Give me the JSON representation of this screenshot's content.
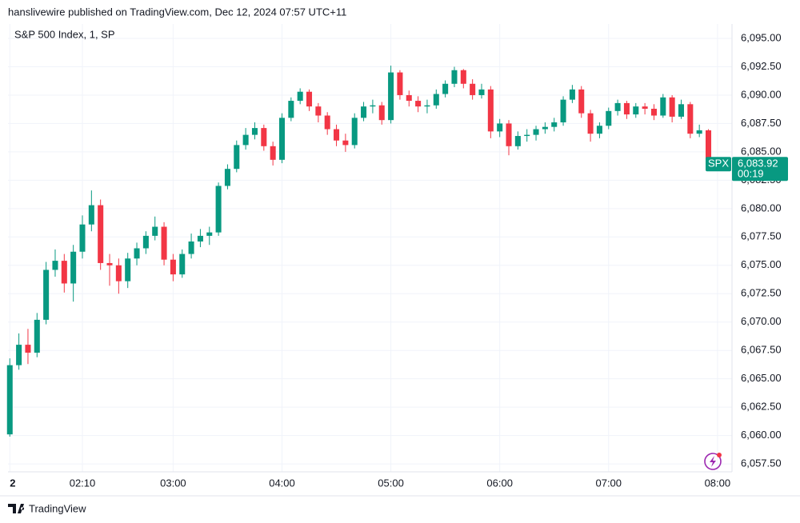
{
  "header": "hanslivewire published on TradingView.com, Dec 12, 2024 07:57 UTC+11",
  "footer": "TradingView",
  "chart_data": {
    "type": "candlestick",
    "title": "S&P 500 Index, 1, SP",
    "up_color": "#089981",
    "down_color": "#f23645",
    "grid": true,
    "x": [
      "01:30",
      "01:35",
      "01:40",
      "01:45",
      "01:50",
      "01:55",
      "02:00",
      "02:05",
      "02:10",
      "02:15",
      "02:20",
      "02:25",
      "02:30",
      "02:35",
      "02:40",
      "02:45",
      "02:50",
      "02:55",
      "03:00",
      "03:05",
      "03:10",
      "03:15",
      "03:20",
      "03:25",
      "03:30",
      "03:35",
      "03:40",
      "03:45",
      "03:50",
      "03:55",
      "04:00",
      "04:05",
      "04:10",
      "04:15",
      "04:20",
      "04:25",
      "04:30",
      "04:35",
      "04:40",
      "04:45",
      "04:50",
      "04:55",
      "05:00",
      "05:05",
      "05:10",
      "05:15",
      "05:20",
      "05:25",
      "05:30",
      "05:35",
      "05:40",
      "05:45",
      "05:50",
      "05:55",
      "06:00",
      "06:05",
      "06:10",
      "06:15",
      "06:20",
      "06:25",
      "06:30",
      "06:35",
      "06:40",
      "06:45",
      "06:50",
      "06:55",
      "07:00",
      "07:05",
      "07:10",
      "07:15",
      "07:20",
      "07:25",
      "07:30",
      "07:35",
      "07:40",
      "07:45",
      "07:50",
      "07:55"
    ],
    "open": [
      6060.1,
      6066.2,
      6068.0,
      6067.3,
      6070.2,
      6074.6,
      6075.4,
      6073.4,
      6076.2,
      6078.6,
      6080.3,
      6075.2,
      6075.0,
      6073.6,
      6075.6,
      6076.5,
      6077.6,
      6078.4,
      6075.5,
      6074.2,
      6076.0,
      6077.1,
      6077.6,
      6077.9,
      6082.0,
      6083.5,
      6085.6,
      6086.5,
      6087.1,
      6085.5,
      6084.3,
      6088.0,
      6089.5,
      6090.3,
      6089.0,
      6088.2,
      6087.0,
      6086.0,
      6085.6,
      6088.0,
      6089.0,
      6089.1,
      6087.8,
      6092.0,
      6090.0,
      6089.5,
      6089.0,
      6089.1,
      6090.1,
      6091.0,
      6092.2,
      6091.0,
      6090.0,
      6090.5,
      6086.8,
      6087.5,
      6085.5,
      6086.4,
      6086.5,
      6087.0,
      6087.2,
      6087.6,
      6089.6,
      6090.5,
      6088.4,
      6086.6,
      6087.3,
      6088.6,
      6089.3,
      6088.3,
      6089.0,
      6088.8,
      6088.2,
      6089.8,
      6088.1,
      6089.2,
      6086.6,
      6086.9
    ],
    "high": [
      6066.8,
      6069.0,
      6069.4,
      6070.8,
      6075.3,
      6076.4,
      6076.0,
      6076.8,
      6079.4,
      6081.6,
      6080.8,
      6076.0,
      6075.6,
      6076.1,
      6077.0,
      6078.0,
      6079.3,
      6078.8,
      6076.0,
      6076.4,
      6077.8,
      6078.2,
      6078.4,
      6082.3,
      6083.9,
      6086.0,
      6087.1,
      6087.6,
      6087.4,
      6085.9,
      6088.4,
      6089.8,
      6090.6,
      6090.5,
      6089.3,
      6088.5,
      6087.4,
      6086.6,
      6088.4,
      6089.4,
      6089.6,
      6089.4,
      6092.6,
      6092.2,
      6090.4,
      6089.9,
      6089.6,
      6090.5,
      6091.3,
      6092.5,
      6092.3,
      6091.4,
      6091.0,
      6090.8,
      6087.9,
      6087.8,
      6086.8,
      6087.0,
      6087.3,
      6087.6,
      6088.0,
      6089.9,
      6090.9,
      6090.8,
      6088.7,
      6087.6,
      6088.9,
      6089.6,
      6089.5,
      6089.3,
      6089.3,
      6089.2,
      6090.1,
      6090.0,
      6089.6,
      6089.4,
      6087.4,
      6087.0
    ],
    "low": [
      6059.9,
      6065.8,
      6066.3,
      6066.9,
      6069.8,
      6074.0,
      6072.6,
      6071.8,
      6075.6,
      6078.0,
      6074.6,
      6073.2,
      6072.5,
      6073.0,
      6075.0,
      6076.0,
      6077.2,
      6075.0,
      6073.6,
      6073.9,
      6075.6,
      6076.6,
      6076.8,
      6077.6,
      6081.7,
      6083.2,
      6085.2,
      6086.1,
      6085.1,
      6083.8,
      6084.0,
      6087.7,
      6089.2,
      6088.6,
      6087.6,
      6086.5,
      6085.5,
      6085.0,
      6085.3,
      6087.7,
      6088.4,
      6087.4,
      6087.5,
      6089.6,
      6089.0,
      6088.5,
      6088.4,
      6088.8,
      6089.8,
      6090.7,
      6090.6,
      6089.6,
      6089.7,
      6086.2,
      6086.3,
      6084.7,
      6085.2,
      6085.9,
      6086.0,
      6086.6,
      6086.8,
      6087.3,
      6089.3,
      6088.0,
      6085.9,
      6086.2,
      6087.0,
      6088.2,
      6087.9,
      6088.0,
      6088.3,
      6087.8,
      6088.0,
      6087.6,
      6087.9,
      6086.2,
      6086.3,
      6083.7
    ],
    "close": [
      6066.2,
      6068.0,
      6067.3,
      6070.2,
      6074.6,
      6075.4,
      6073.4,
      6076.2,
      6078.6,
      6080.3,
      6075.2,
      6075.0,
      6073.6,
      6075.6,
      6076.5,
      6077.6,
      6078.4,
      6075.5,
      6074.2,
      6076.0,
      6077.1,
      6077.6,
      6077.9,
      6082.0,
      6083.5,
      6085.6,
      6086.5,
      6087.1,
      6085.5,
      6084.3,
      6088.0,
      6089.5,
      6090.3,
      6089.0,
      6088.2,
      6087.0,
      6086.0,
      6085.6,
      6088.0,
      6089.0,
      6089.1,
      6087.8,
      6092.0,
      6090.0,
      6089.5,
      6089.0,
      6089.1,
      6090.1,
      6091.0,
      6092.2,
      6091.0,
      6090.0,
      6090.5,
      6086.8,
      6087.5,
      6085.5,
      6086.4,
      6086.5,
      6087.0,
      6087.2,
      6087.6,
      6089.6,
      6090.5,
      6088.4,
      6086.6,
      6087.3,
      6088.6,
      6089.3,
      6088.3,
      6089.0,
      6088.8,
      6088.2,
      6089.8,
      6088.1,
      6089.2,
      6086.6,
      6086.9,
      6083.92
    ],
    "xlim": [
      "01:29",
      "08:08"
    ],
    "xticks": [
      {
        "value": "01:30",
        "label": "2"
      },
      "02:10",
      "03:00",
      "04:00",
      "05:00",
      "06:00",
      "07:00",
      "08:00"
    ],
    "ylim": [
      6056.8,
      6096.27
    ],
    "yticks": [
      {
        "value": 6057.5,
        "label": "6,057.50"
      },
      {
        "value": 6060,
        "label": "6,060.00"
      },
      {
        "value": 6062.5,
        "label": "6,062.50"
      },
      {
        "value": 6065,
        "label": "6,065.00"
      },
      {
        "value": 6067.5,
        "label": "6,067.50"
      },
      {
        "value": 6070,
        "label": "6,070.00"
      },
      {
        "value": 6072.5,
        "label": "6,072.50"
      },
      {
        "value": 6075,
        "label": "6,075.00"
      },
      {
        "value": 6077.5,
        "label": "6,077.50"
      },
      {
        "value": 6080,
        "label": "6,080.00"
      },
      {
        "value": 6082.5,
        "label": "6,082.50"
      },
      {
        "value": 6085,
        "label": "6,085.00"
      },
      {
        "value": 6087.5,
        "label": "6,087.50"
      },
      {
        "value": 6090,
        "label": "6,090.00"
      },
      {
        "value": 6092.5,
        "label": "6,092.50"
      },
      {
        "value": 6095,
        "label": "6,095.00"
      }
    ],
    "price_label": {
      "symbol": "SPX",
      "value": 6083.92,
      "label": "6,083.92",
      "countdown": "00:19"
    }
  }
}
